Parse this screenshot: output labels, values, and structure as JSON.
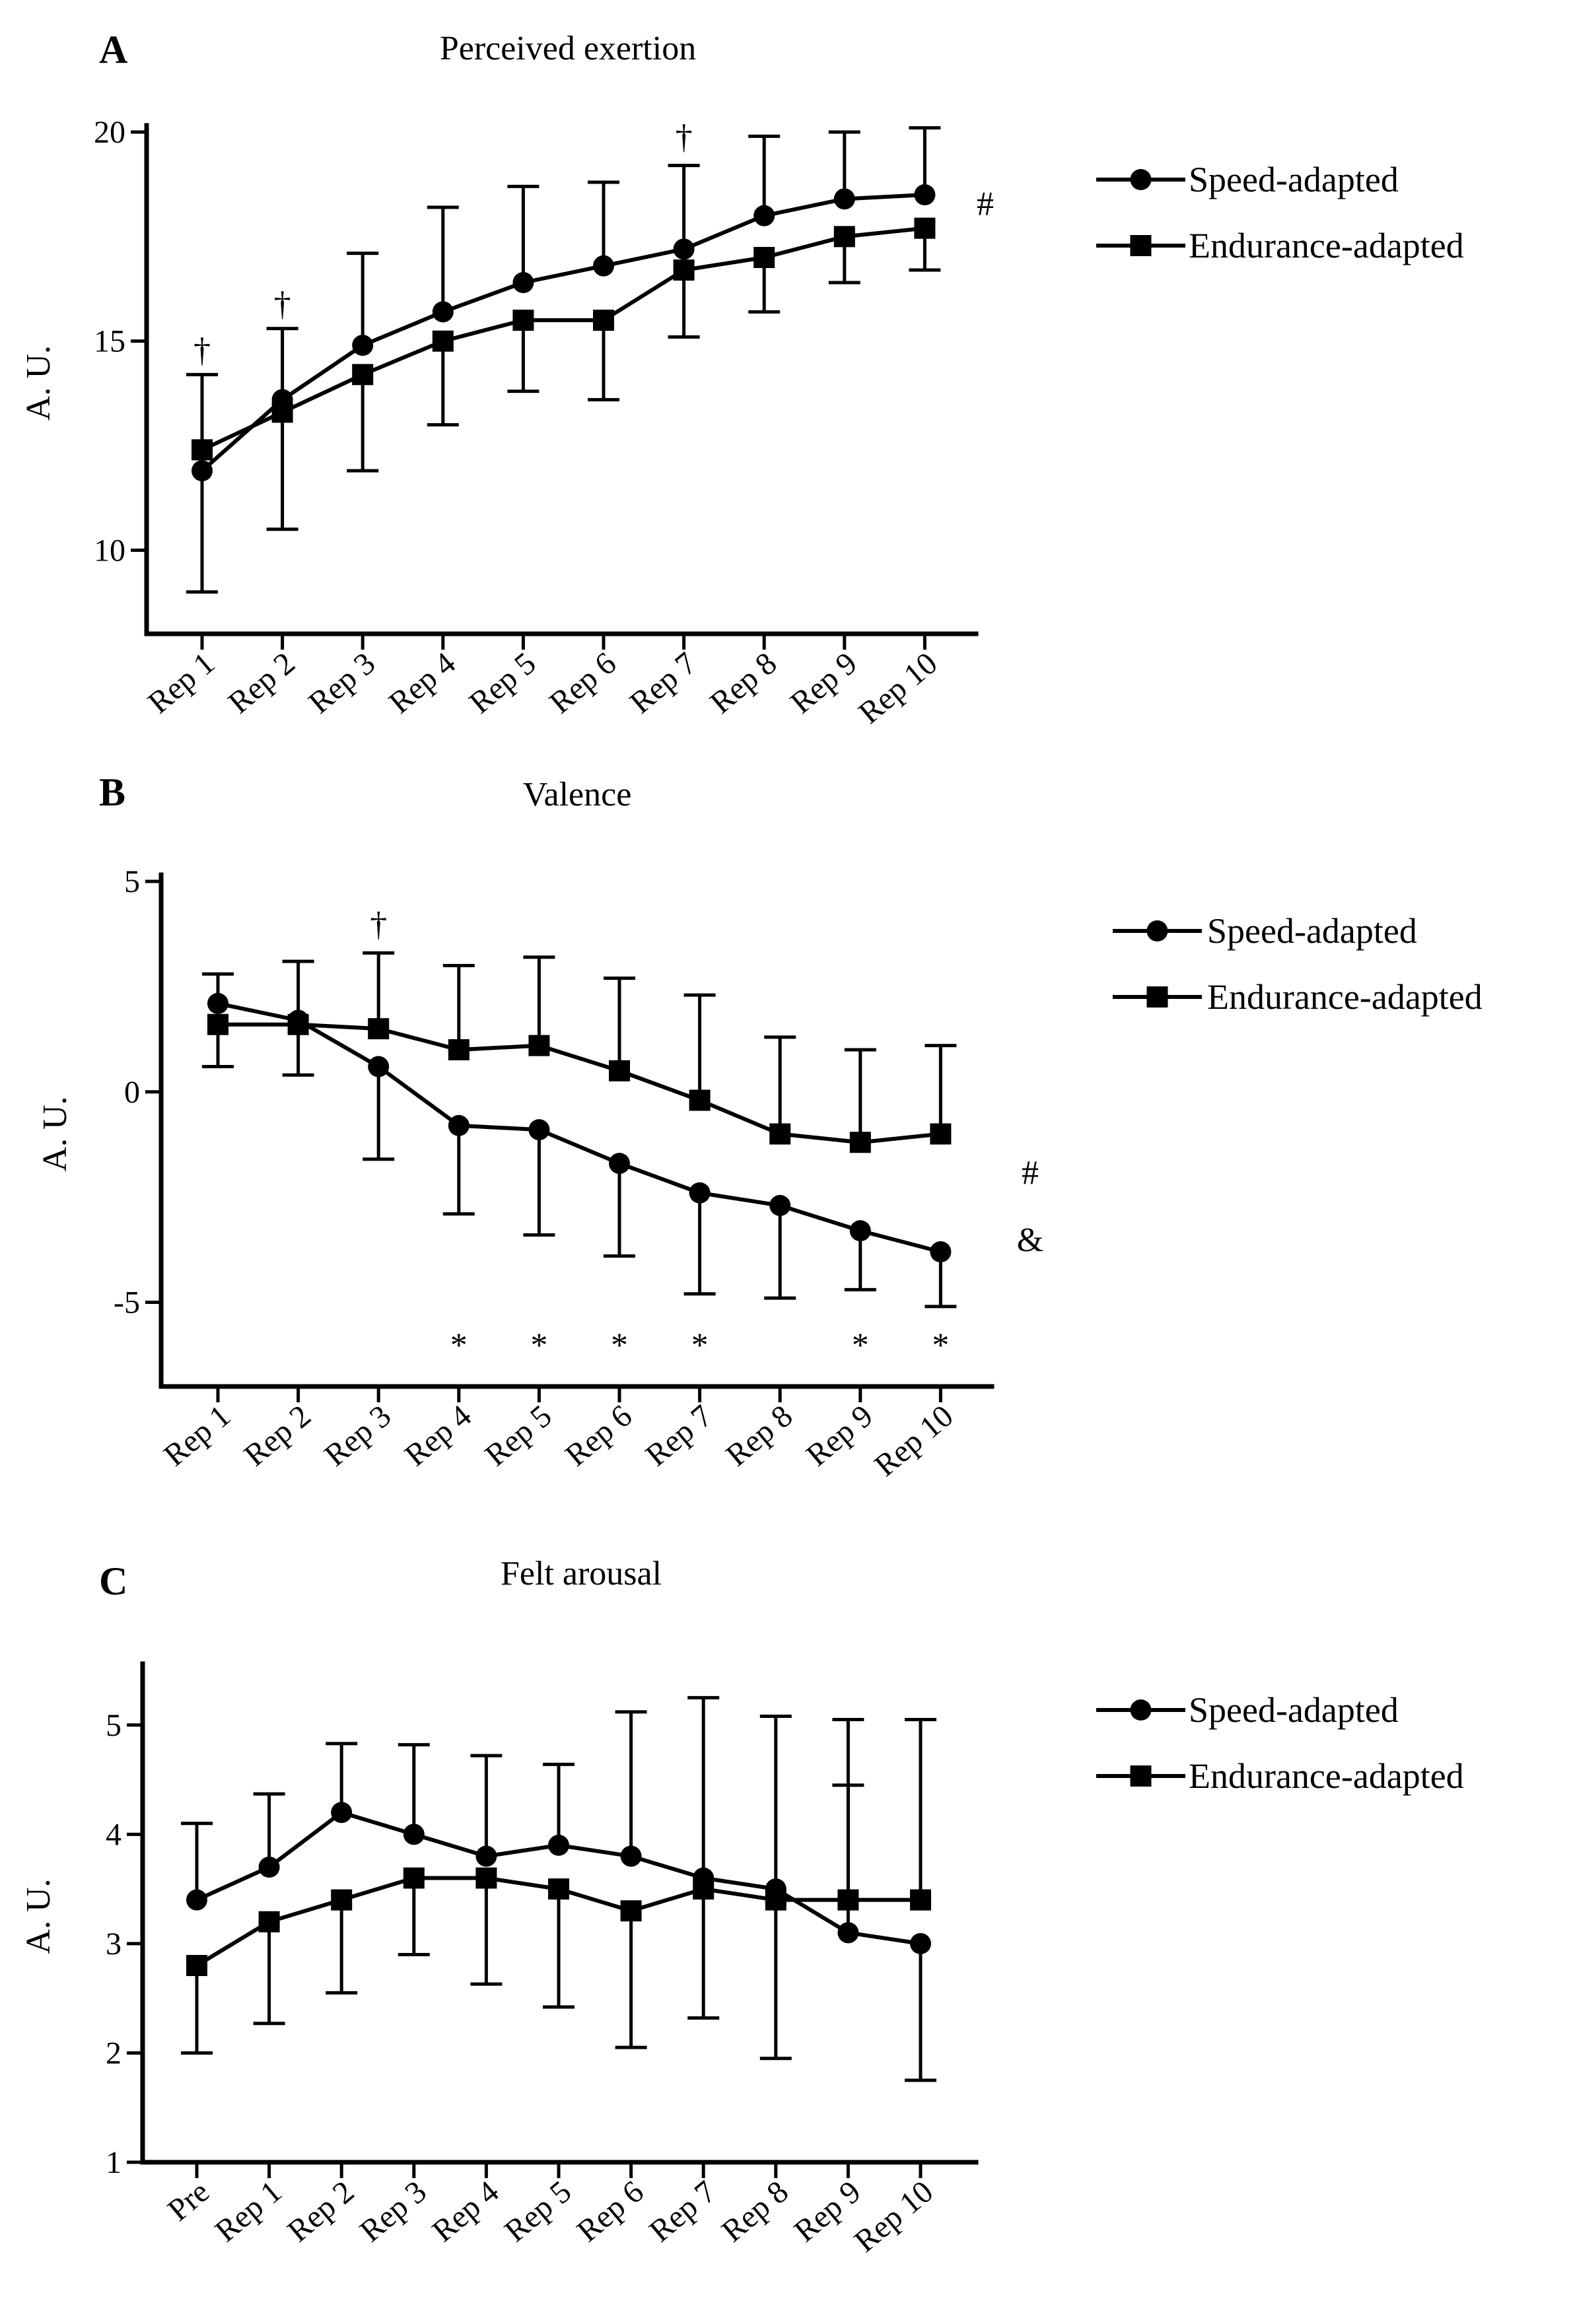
{
  "chart_data": [
    {
      "panel": "A",
      "type": "line",
      "title": "Perceived exertion",
      "xlabel": "",
      "ylabel": "A. U.",
      "ylim": [
        8,
        20
      ],
      "yticks": [
        10,
        15,
        20
      ],
      "categories": [
        "Rep 1",
        "Rep 2",
        "Rep 3",
        "Rep 4",
        "Rep 5",
        "Rep 6",
        "Rep 7",
        "Rep 8",
        "Rep 9",
        "Rep 10"
      ],
      "series": [
        {
          "name": "Speed-adapted",
          "marker": "circle",
          "values": [
            11.9,
            13.6,
            14.9,
            15.7,
            16.4,
            16.8,
            17.2,
            18.0,
            18.4,
            18.5
          ],
          "error": [
            2.9,
            1.7,
            2.2,
            2.5,
            2.3,
            2.0,
            2.0,
            1.9,
            1.6,
            1.6
          ],
          "error_direction": "up-or-down"
        },
        {
          "name": "Endurance-adapted",
          "marker": "square",
          "values": [
            12.4,
            13.3,
            14.2,
            15.0,
            15.5,
            15.5,
            16.7,
            17.0,
            17.5,
            17.7
          ],
          "error": [
            1.8,
            2.8,
            2.3,
            2.0,
            1.7,
            1.9,
            1.6,
            1.3,
            1.1,
            1.0
          ],
          "error_direction": "up-or-down"
        }
      ],
      "error_side": {
        "Speed-adapted": [
          "down",
          "up",
          "up",
          "up",
          "up",
          "up",
          "up",
          "up",
          "up",
          "up"
        ],
        "Endurance-adapted": [
          "up",
          "down",
          "down",
          "down",
          "down",
          "down",
          "down",
          "down",
          "down",
          "down"
        ]
      },
      "annotations": [
        {
          "category": "Rep 1",
          "symbol": "†",
          "value": 14.8
        },
        {
          "category": "Rep 2",
          "symbol": "†",
          "value": 15.9
        },
        {
          "category": "Rep 7",
          "symbol": "†",
          "value": 19.9
        },
        {
          "category": "after-last",
          "symbol": "#",
          "value": 18.3
        }
      ],
      "legend": [
        "Speed-adapted",
        "Endurance-adapted"
      ]
    },
    {
      "panel": "B",
      "type": "line",
      "title": "Valence",
      "xlabel": "",
      "ylabel": "A. U.",
      "ylim": [
        -7,
        5
      ],
      "yticks": [
        -5,
        0,
        5
      ],
      "ytick_labels": [
        "-5",
        "0",
        "5"
      ],
      "categories": [
        "Rep 1",
        "Rep 2",
        "Rep 3",
        "Rep 4",
        "Rep 5",
        "Rep 6",
        "Rep 7",
        "Rep 8",
        "Rep 9",
        "Rep 10"
      ],
      "series": [
        {
          "name": "Speed-adapted",
          "marker": "circle",
          "values": [
            2.1,
            1.7,
            0.6,
            -0.8,
            -0.9,
            -1.7,
            -2.4,
            -2.7,
            -3.3,
            -3.8
          ],
          "error": [
            0.7,
            1.3,
            2.2,
            2.1,
            2.5,
            2.2,
            2.4,
            2.2,
            1.4,
            1.3
          ]
        },
        {
          "name": "Endurance-adapted",
          "marker": "square",
          "values": [
            1.6,
            1.6,
            1.5,
            1.0,
            1.1,
            0.5,
            -0.2,
            -1.0,
            -1.2,
            -1.0
          ],
          "error": [
            1.0,
            1.5,
            1.8,
            2.0,
            2.1,
            2.2,
            2.5,
            2.3,
            2.2,
            2.1
          ]
        }
      ],
      "error_side": {
        "Speed-adapted": [
          "up",
          "down",
          "down",
          "down",
          "down",
          "down",
          "down",
          "down",
          "down",
          "down"
        ],
        "Endurance-adapted": [
          "down",
          "up",
          "up",
          "up",
          "up",
          "up",
          "up",
          "up",
          "up",
          "up"
        ]
      },
      "annotations": [
        {
          "category": "Rep 3",
          "symbol": "†",
          "value": 4.0
        },
        {
          "category": "Rep 4",
          "symbol": "*",
          "value": -6.0
        },
        {
          "category": "Rep 5",
          "symbol": "*",
          "value": -6.0
        },
        {
          "category": "Rep 6",
          "symbol": "*",
          "value": -6.0
        },
        {
          "category": "Rep 7",
          "symbol": "*",
          "value": -6.0
        },
        {
          "category": "Rep 9",
          "symbol": "*",
          "value": -6.0
        },
        {
          "category": "Rep 10",
          "symbol": "*",
          "value": -6.0
        },
        {
          "category": "after-last",
          "symbol": "#",
          "value": -1.9
        },
        {
          "category": "after-last",
          "symbol": "&",
          "value": -3.5
        }
      ],
      "legend": [
        "Speed-adapted",
        "Endurance-adapted"
      ]
    },
    {
      "panel": "C",
      "type": "line",
      "title": "Felt arousal",
      "xlabel": "",
      "ylabel": "A. U.",
      "ylim": [
        1,
        5.5
      ],
      "yticks": [
        1,
        2,
        3,
        4,
        5
      ],
      "categories": [
        "Pre",
        "Rep 1",
        "Rep 2",
        "Rep 3",
        "Rep 4",
        "Rep 5",
        "Rep 6",
        "Rep 7",
        "Rep 8",
        "Rep 9",
        "Rep 10"
      ],
      "series": [
        {
          "name": "Speed-adapted",
          "marker": "circle",
          "values": [
            3.4,
            3.7,
            4.2,
            4.0,
            3.8,
            3.9,
            3.8,
            3.6,
            3.5,
            3.1,
            3.0
          ],
          "error": [
            0.7,
            0.67,
            0.63,
            0.82,
            0.92,
            0.74,
            1.32,
            1.65,
            1.58,
            1.35,
            1.25
          ]
        },
        {
          "name": "Endurance-adapted",
          "marker": "square",
          "values": [
            2.8,
            3.2,
            3.4,
            3.6,
            3.6,
            3.5,
            3.3,
            3.5,
            3.4,
            3.4,
            3.4
          ],
          "error": [
            0.8,
            0.93,
            0.85,
            0.7,
            0.97,
            1.08,
            1.25,
            1.18,
            1.45,
            1.65,
            1.65
          ]
        }
      ],
      "error_side": {
        "Speed-adapted": [
          "up",
          "up",
          "up",
          "up",
          "up",
          "up",
          "up",
          "up",
          "up",
          "up",
          "down"
        ],
        "Endurance-adapted": [
          "down",
          "down",
          "down",
          "down",
          "down",
          "down",
          "down",
          "down",
          "down",
          "up",
          "up"
        ]
      },
      "annotations": [],
      "legend": [
        "Speed-adapted",
        "Endurance-adapted"
      ]
    }
  ]
}
